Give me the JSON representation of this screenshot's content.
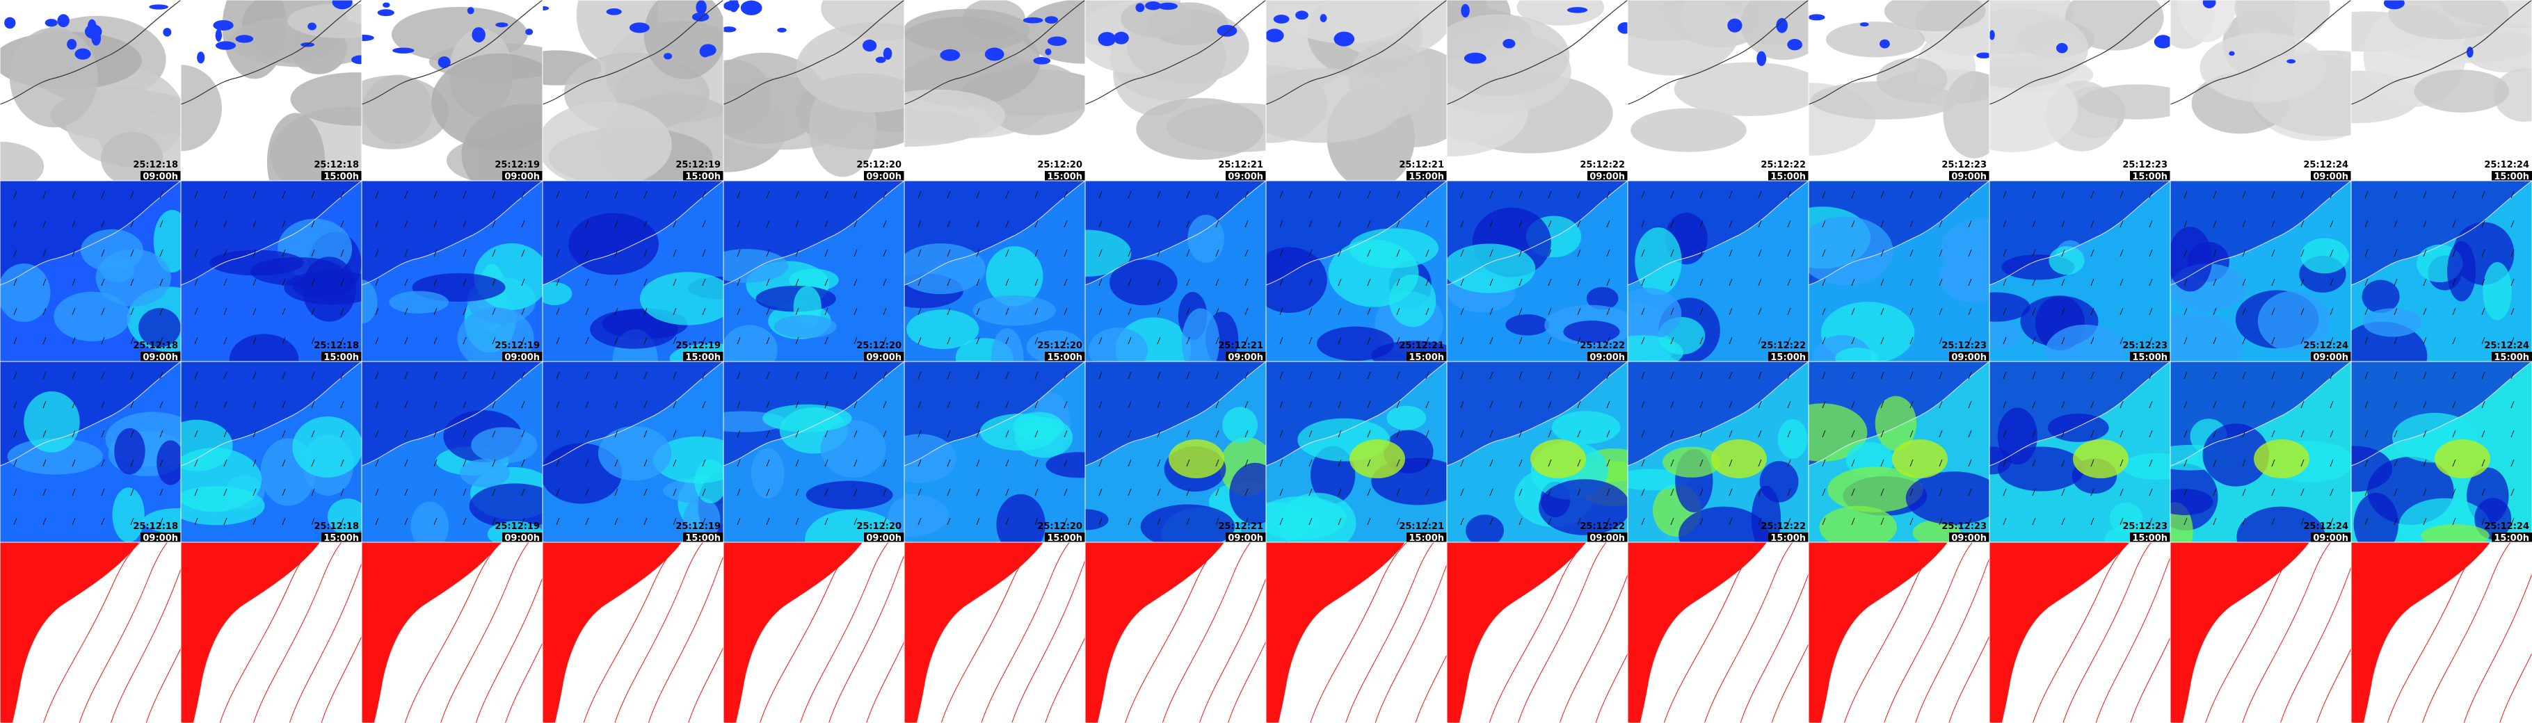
{
  "columns": [
    {
      "date": "25:12:18",
      "time": "09:00h"
    },
    {
      "date": "25:12:18",
      "time": "15:00h"
    },
    {
      "date": "25:12:19",
      "time": "09:00h"
    },
    {
      "date": "25:12:19",
      "time": "15:00h"
    },
    {
      "date": "25:12:20",
      "time": "09:00h"
    },
    {
      "date": "25:12:20",
      "time": "15:00h"
    },
    {
      "date": "25:12:21",
      "time": "09:00h"
    },
    {
      "date": "25:12:21",
      "time": "15:00h"
    },
    {
      "date": "25:12:22",
      "time": "09:00h"
    },
    {
      "date": "25:12:22",
      "time": "15:00h"
    },
    {
      "date": "25:12:23",
      "time": "09:00h"
    },
    {
      "date": "25:12:23",
      "time": "15:00h"
    },
    {
      "date": "25:12:24",
      "time": "09:00h"
    },
    {
      "date": "25:12:24",
      "time": "15:00h"
    }
  ]
}
